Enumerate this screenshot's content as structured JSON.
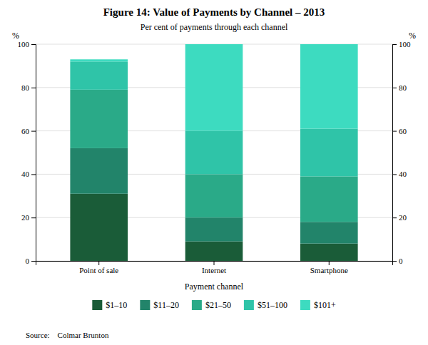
{
  "chart_data": {
    "type": "bar",
    "stacked": true,
    "title": "Figure 14: Value of Payments by Channel – 2013",
    "subtitle": "Per cent of payments through each channel",
    "xlabel": "Payment channel",
    "ylabel": "%",
    "y2label": "%",
    "source": "Source:    Colmar Brunton",
    "categories": [
      "Point of sale",
      "Internet",
      "Smartphone"
    ],
    "series": [
      {
        "name": "$1–10",
        "color": "#1a5c38",
        "values": [
          31,
          9,
          8
        ]
      },
      {
        "name": "$11–20",
        "color": "#22846a",
        "values": [
          21,
          11,
          10
        ]
      },
      {
        "name": "$21–50",
        "color": "#2aaa88",
        "values": [
          27,
          20,
          21
        ]
      },
      {
        "name": "$51–100",
        "color": "#2fc4a8",
        "values": [
          13,
          20,
          22
        ]
      },
      {
        "name": "$101+",
        "color": "#3ddbc0",
        "values": [
          1,
          40,
          39
        ]
      }
    ],
    "ylim": [
      0,
      100
    ],
    "yticks": [
      0,
      20,
      40,
      60,
      80,
      100
    ],
    "y2lim": [
      0,
      100
    ],
    "y2ticks": [
      0,
      20,
      40,
      60,
      80,
      100
    ],
    "grid": true,
    "legend": "bottom"
  }
}
